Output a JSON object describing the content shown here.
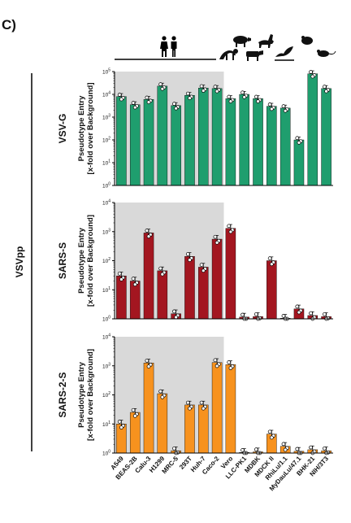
{
  "figure_label": "C)",
  "side_label": "VSVpp",
  "y_axis_title_line1": "Pseudotype Entry",
  "y_axis_title_line2": "[x-fold over Background]",
  "categories": [
    "A549",
    "BEAS-2B",
    "Calu-3",
    "H1299",
    "MRC-5",
    "293T",
    "Huh-7",
    "Caco-2",
    "Vero",
    "LLC-PK1",
    "MDBK",
    "MDCK II",
    "RhiLu/1.1",
    "MyDauLu/47.1",
    "BHK-21",
    "NIH/3T3"
  ],
  "human_group_count": 8,
  "species_icons": [
    "human-pair-icon",
    "pig-icon",
    "dog-icon",
    "cow-icon",
    "bat-icon",
    "mouse-icon",
    "hamster-icon",
    "monkey-icon"
  ],
  "colors": {
    "green": "#1f9e6e",
    "red": "#a31620",
    "orange": "#f7921e",
    "shade": "#d9d9d9"
  },
  "chart_data": [
    {
      "type": "bar",
      "panel_label": "VSV-G",
      "yscale": "log",
      "ylim": [
        1,
        100000
      ],
      "tick_labels": [
        "10^0",
        "10^1",
        "10^2",
        "10^3",
        "10^4",
        "10^5"
      ],
      "values": [
        8000,
        3500,
        6000,
        23000,
        3200,
        9000,
        19000,
        18000,
        6500,
        10000,
        6500,
        3000,
        2500,
        100,
        80000,
        18000
      ]
    },
    {
      "type": "bar",
      "panel_label": "SARS-S",
      "yscale": "log",
      "ylim": [
        1,
        10000
      ],
      "tick_labels": [
        "10^0",
        "10^1",
        "10^2",
        "10^3",
        "10^4"
      ],
      "values": [
        30,
        20,
        900,
        45,
        1.5,
        140,
        60,
        550,
        1300,
        1.15,
        1.2,
        100,
        1.05,
        2.2,
        1.3,
        1.2
      ]
    },
    {
      "type": "bar",
      "panel_label": "SARS-2-S",
      "yscale": "log",
      "ylim": [
        1,
        10000
      ],
      "tick_labels": [
        "10^0",
        "10^1",
        "10^2",
        "10^3",
        "10^4"
      ],
      "values": [
        10,
        25,
        1250,
        110,
        1.2,
        45,
        45,
        1300,
        1100,
        1.05,
        1.1,
        4.5,
        1.7,
        1.15,
        1.3,
        1.2
      ]
    }
  ]
}
